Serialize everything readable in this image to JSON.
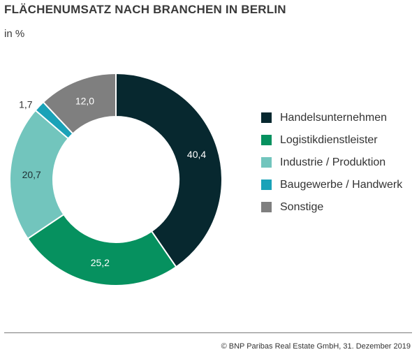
{
  "chart_data": {
    "type": "pie",
    "title": "FLÄCHENUMSATZ NACH BRANCHEN IN BERLIN",
    "subtitle": "in %",
    "categories": [
      "Handelsunternehmen",
      "Logistikdienstleister",
      "Industrie / Produktion",
      "Baugewerbe / Handwerk",
      "Sonstige"
    ],
    "values": [
      40.4,
      25.2,
      20.7,
      1.7,
      12.0
    ],
    "value_labels": [
      "40,4",
      "25,2",
      "20,7",
      "1,7",
      "12,0"
    ],
    "colors": [
      "#07282f",
      "#06915f",
      "#72c5bd",
      "#1aa2b8",
      "#7f7f7f"
    ],
    "donut": true,
    "legend_position": "right"
  },
  "source": "© BNP Paribas Real Estate GmbH, 31. Dezember 2019"
}
